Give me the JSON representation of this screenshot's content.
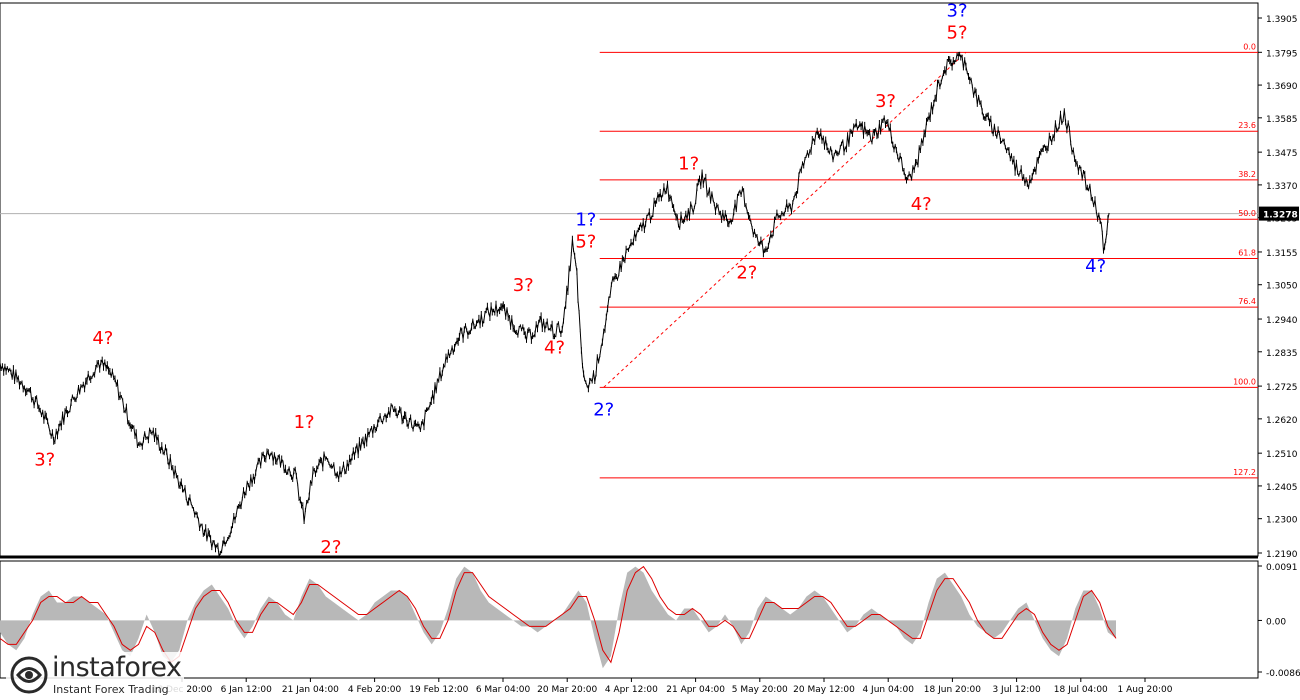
{
  "chart_data": {
    "type": "line",
    "price_axis_ticks": [
      "1.3905",
      "1.3795",
      "1.3690",
      "1.3585",
      "1.3475",
      "1.3370",
      "1.3265",
      "1.3155",
      "1.3050",
      "1.2940",
      "1.2835",
      "1.2725",
      "1.2620",
      "1.2510",
      "1.2405",
      "1.2300",
      "1.2190"
    ],
    "ylim": [
      1.219,
      1.3905
    ],
    "current_price": "1.3278",
    "time_axis_labels": [
      "18 Dec 20:00",
      "6 Jan 12:00",
      "21 Jan 04:00",
      "4 Feb 20:00",
      "19 Feb 12:00",
      "6 Mar 04:00",
      "20 Mar 20:00",
      "4 Apr 12:00",
      "21 Apr 04:00",
      "5 May 20:00",
      "20 May 12:00",
      "4 Jun 04:00",
      "18 Jun 20:00",
      "3 Jul 12:00",
      "18 Jul 04:00",
      "1 Aug 20:00"
    ],
    "price_path": [
      [
        0,
        1.28
      ],
      [
        3,
        1.276
      ],
      [
        6,
        1.272
      ],
      [
        9,
        1.265
      ],
      [
        12,
        1.256
      ],
      [
        14,
        1.262
      ],
      [
        17,
        1.27
      ],
      [
        20,
        1.276
      ],
      [
        22,
        1.28
      ],
      [
        24,
        1.278
      ],
      [
        26,
        1.273
      ],
      [
        28,
        1.265
      ],
      [
        31,
        1.254
      ],
      [
        34,
        1.258
      ],
      [
        37,
        1.251
      ],
      [
        40,
        1.242
      ],
      [
        43,
        1.234
      ],
      [
        46,
        1.225
      ],
      [
        49,
        1.22
      ],
      [
        52,
        1.228
      ],
      [
        55,
        1.24
      ],
      [
        58,
        1.247
      ],
      [
        60,
        1.252
      ],
      [
        63,
        1.248
      ],
      [
        66,
        1.244
      ],
      [
        68,
        1.23
      ],
      [
        70,
        1.244
      ],
      [
        73,
        1.25
      ],
      [
        76,
        1.244
      ],
      [
        79,
        1.25
      ],
      [
        82,
        1.256
      ],
      [
        85,
        1.262
      ],
      [
        88,
        1.265
      ],
      [
        91,
        1.262
      ],
      [
        94,
        1.258
      ],
      [
        97,
        1.27
      ],
      [
        100,
        1.282
      ],
      [
        103,
        1.289
      ],
      [
        106,
        1.292
      ],
      [
        109,
        1.296
      ],
      [
        112,
        1.298
      ],
      [
        115,
        1.292
      ],
      [
        118,
        1.288
      ],
      [
        121,
        1.293
      ],
      [
        124,
        1.29
      ],
      [
        126,
        1.292
      ],
      [
        127,
        1.305
      ],
      [
        128,
        1.318
      ],
      [
        129,
        1.308
      ],
      [
        130,
        1.282
      ],
      [
        131,
        1.272
      ],
      [
        133,
        1.276
      ],
      [
        135,
        1.29
      ],
      [
        137,
        1.305
      ],
      [
        140,
        1.315
      ],
      [
        143,
        1.322
      ],
      [
        146,
        1.329
      ],
      [
        149,
        1.337
      ],
      [
        152,
        1.325
      ],
      [
        155,
        1.33
      ],
      [
        157,
        1.34
      ],
      [
        160,
        1.33
      ],
      [
        163,
        1.325
      ],
      [
        166,
        1.335
      ],
      [
        169,
        1.32
      ],
      [
        171,
        1.316
      ],
      [
        174,
        1.327
      ],
      [
        177,
        1.33
      ],
      [
        180,
        1.345
      ],
      [
        183,
        1.355
      ],
      [
        186,
        1.346
      ],
      [
        189,
        1.35
      ],
      [
        192,
        1.356
      ],
      [
        195,
        1.352
      ],
      [
        198,
        1.358
      ],
      [
        201,
        1.346
      ],
      [
        203,
        1.338
      ],
      [
        205,
        1.344
      ],
      [
        208,
        1.36
      ],
      [
        211,
        1.374
      ],
      [
        214,
        1.378
      ],
      [
        216,
        1.376
      ],
      [
        218,
        1.366
      ],
      [
        221,
        1.357
      ],
      [
        224,
        1.352
      ],
      [
        227,
        1.343
      ],
      [
        230,
        1.338
      ],
      [
        233,
        1.347
      ],
      [
        236,
        1.355
      ],
      [
        238,
        1.36
      ],
      [
        240,
        1.348
      ],
      [
        242,
        1.34
      ],
      [
        244,
        1.334
      ],
      [
        246,
        1.326
      ],
      [
        247,
        1.315
      ],
      [
        248,
        1.328
      ]
    ],
    "fibonacci_levels": [
      {
        "label": "0.0",
        "value": 1.3795
      },
      {
        "label": "23.6",
        "value": 1.3542
      },
      {
        "label": "38.2",
        "value": 1.3386
      },
      {
        "label": "50.0",
        "value": 1.326
      },
      {
        "label": "61.8",
        "value": 1.3134
      },
      {
        "label": "76.4",
        "value": 1.2978
      },
      {
        "label": "100.0",
        "value": 1.2721
      },
      {
        "label": "127.2",
        "value": 1.2431
      }
    ],
    "fib_line_from_bar": 135,
    "trendline": {
      "from": [
        135,
        1.2721
      ],
      "to": [
        216,
        1.3795
      ]
    },
    "wave_labels": [
      {
        "text": "3?",
        "bar": 10,
        "price": 1.247,
        "color": "#ff0000"
      },
      {
        "text": "4?",
        "bar": 23,
        "price": 1.286,
        "color": "#ff0000"
      },
      {
        "text": "1?",
        "bar": 68,
        "price": 1.259,
        "color": "#ff0000"
      },
      {
        "text": "2?",
        "bar": 74,
        "price": 1.219,
        "color": "#ff0000"
      },
      {
        "text": "3?",
        "bar": 117,
        "price": 1.303,
        "color": "#ff0000"
      },
      {
        "text": "4?",
        "bar": 124,
        "price": 1.283,
        "color": "#ff0000"
      },
      {
        "text": "1?",
        "bar": 131,
        "price": 1.324,
        "color": "#0000ff"
      },
      {
        "text": "5?",
        "bar": 131,
        "price": 1.317,
        "color": "#ff0000"
      },
      {
        "text": "2?",
        "bar": 135,
        "price": 1.263,
        "color": "#0000ff"
      },
      {
        "text": "1?",
        "bar": 154,
        "price": 1.342,
        "color": "#ff0000"
      },
      {
        "text": "2?",
        "bar": 167,
        "price": 1.307,
        "color": "#ff0000"
      },
      {
        "text": "3?",
        "bar": 198,
        "price": 1.362,
        "color": "#ff0000"
      },
      {
        "text": "4?",
        "bar": 206,
        "price": 1.329,
        "color": "#ff0000"
      },
      {
        "text": "3?",
        "bar": 214,
        "price": 1.391,
        "color": "#0000ff"
      },
      {
        "text": "5?",
        "bar": 214,
        "price": 1.384,
        "color": "#ff0000"
      },
      {
        "text": "4?",
        "bar": 245,
        "price": 1.309,
        "color": "#0000ff"
      }
    ],
    "oscillator": {
      "ticks": [
        "0.0091",
        "0.00",
        "-0.00862"
      ],
      "ylim": [
        -0.00862,
        0.0091
      ],
      "histogram": [
        -0.002,
        -0.004,
        -0.005,
        -0.003,
        0.001,
        0.004,
        0.005,
        0.003,
        0.003,
        0.004,
        0.004,
        0.003,
        0.002,
        0.001,
        -0.002,
        -0.005,
        -0.006,
        -0.003,
        0.001,
        -0.002,
        -0.006,
        -0.007,
        -0.005,
        0.0,
        0.003,
        0.005,
        0.006,
        0.004,
        0.002,
        -0.001,
        -0.003,
        -0.001,
        0.002,
        0.004,
        0.003,
        0.001,
        0.0,
        0.004,
        0.007,
        0.006,
        0.004,
        0.003,
        0.002,
        0.001,
        0.0,
        0.001,
        0.003,
        0.004,
        0.005,
        0.005,
        0.004,
        0.001,
        -0.002,
        -0.004,
        -0.002,
        0.002,
        0.007,
        0.009,
        0.008,
        0.005,
        0.003,
        0.002,
        0.001,
        0.0,
        -0.001,
        -0.001,
        -0.002,
        -0.001,
        0.0,
        0.001,
        0.003,
        0.005,
        0.003,
        -0.003,
        -0.008,
        -0.006,
        0.002,
        0.008,
        0.009,
        0.008,
        0.005,
        0.003,
        0.001,
        0.0,
        0.002,
        0.002,
        0.0,
        -0.002,
        -0.001,
        0.001,
        -0.001,
        -0.004,
        -0.002,
        0.002,
        0.004,
        0.003,
        0.002,
        0.001,
        0.002,
        0.004,
        0.005,
        0.004,
        0.002,
        0.0,
        -0.002,
        -0.001,
        0.001,
        0.002,
        0.001,
        0.0,
        -0.001,
        -0.003,
        -0.004,
        -0.002,
        0.003,
        0.007,
        0.008,
        0.006,
        0.004,
        0.001,
        -0.001,
        -0.002,
        -0.003,
        -0.002,
        0.0,
        0.002,
        0.003,
        0.0,
        -0.003,
        -0.005,
        -0.006,
        -0.003,
        0.002,
        0.005,
        0.005,
        0.002,
        -0.002,
        -0.003
      ],
      "signal_line": [
        -0.003,
        -0.004,
        -0.004,
        -0.002,
        0.0,
        0.003,
        0.004,
        0.004,
        0.003,
        0.003,
        0.004,
        0.003,
        0.003,
        0.001,
        -0.001,
        -0.004,
        -0.005,
        -0.004,
        -0.001,
        -0.002,
        -0.005,
        -0.007,
        -0.006,
        -0.002,
        0.002,
        0.004,
        0.005,
        0.005,
        0.003,
        0.0,
        -0.002,
        -0.002,
        0.001,
        0.003,
        0.003,
        0.002,
        0.001,
        0.003,
        0.006,
        0.006,
        0.005,
        0.004,
        0.003,
        0.002,
        0.001,
        0.001,
        0.002,
        0.003,
        0.004,
        0.005,
        0.004,
        0.002,
        -0.001,
        -0.003,
        -0.003,
        0.0,
        0.005,
        0.008,
        0.008,
        0.006,
        0.004,
        0.003,
        0.002,
        0.001,
        0.0,
        -0.001,
        -0.001,
        -0.001,
        0.0,
        0.001,
        0.002,
        0.004,
        0.004,
        0.0,
        -0.005,
        -0.007,
        -0.002,
        0.005,
        0.008,
        0.009,
        0.007,
        0.004,
        0.002,
        0.001,
        0.001,
        0.002,
        0.001,
        -0.001,
        -0.001,
        0.0,
        -0.001,
        -0.003,
        -0.003,
        0.0,
        0.003,
        0.003,
        0.002,
        0.002,
        0.002,
        0.003,
        0.004,
        0.004,
        0.003,
        0.001,
        -0.001,
        -0.001,
        0.0,
        0.001,
        0.001,
        0.0,
        -0.001,
        -0.002,
        -0.003,
        -0.003,
        0.001,
        0.005,
        0.007,
        0.007,
        0.005,
        0.003,
        0.0,
        -0.002,
        -0.003,
        -0.003,
        -0.001,
        0.001,
        0.002,
        0.001,
        -0.002,
        -0.004,
        -0.005,
        -0.004,
        0.0,
        0.004,
        0.005,
        0.003,
        -0.001,
        -0.003
      ]
    },
    "colors": {
      "fib": "#ff0000",
      "wave_red": "#ff0000",
      "wave_blue": "#0000ff",
      "oscillator_hist": "#b8b8b8",
      "oscillator_signal": "#dd0000",
      "candle": "#000000"
    }
  },
  "logo": {
    "brand": "instaforex",
    "tagline": "Instant Forex Trading"
  }
}
